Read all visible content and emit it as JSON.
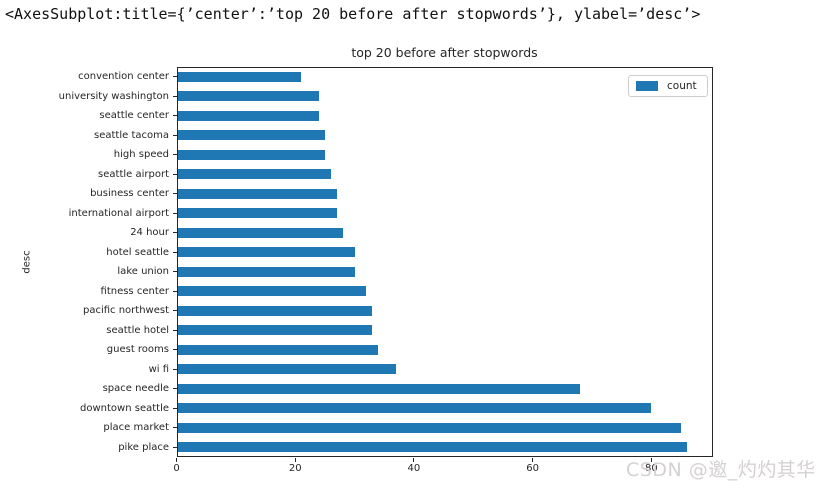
{
  "repr_text": "<AxesSubplot:title={’center’:’top 20 before after stopwords’}, ylabel=’desc’>",
  "figure": {
    "title": "top 20 before after stopwords",
    "ylabel": "desc",
    "legend_label": "count"
  },
  "watermark": "CSDN @邀_灼灼其华",
  "colors": {
    "bar": "#1f77b4",
    "spine": "#262626",
    "legend_border": "#cccccc",
    "watermark": "#d6d1d1"
  },
  "chart_data": {
    "type": "bar",
    "orientation": "horizontal",
    "title": "top 20 before after stopwords",
    "xlabel": "",
    "ylabel": "desc",
    "legend_entries": [
      "count"
    ],
    "legend_position": "upper right",
    "grid": false,
    "xlim": [
      0,
      90.3
    ],
    "xticks": [
      0,
      20,
      40,
      60,
      80
    ],
    "categories": [
      "convention center",
      "university washington",
      "seattle center",
      "seattle tacoma",
      "high speed",
      "seattle airport",
      "business center",
      "international airport",
      "24 hour",
      "hotel seattle",
      "lake union",
      "fitness center",
      "pacific northwest",
      "seattle hotel",
      "guest rooms",
      "wi fi",
      "space needle",
      "downtown seattle",
      "place market",
      "pike place"
    ],
    "series": [
      {
        "name": "count",
        "values": [
          21,
          24,
          24,
          25,
          25,
          26,
          27,
          27,
          28,
          30,
          30,
          32,
          33,
          33,
          34,
          37,
          68,
          80,
          85,
          86
        ]
      }
    ]
  }
}
